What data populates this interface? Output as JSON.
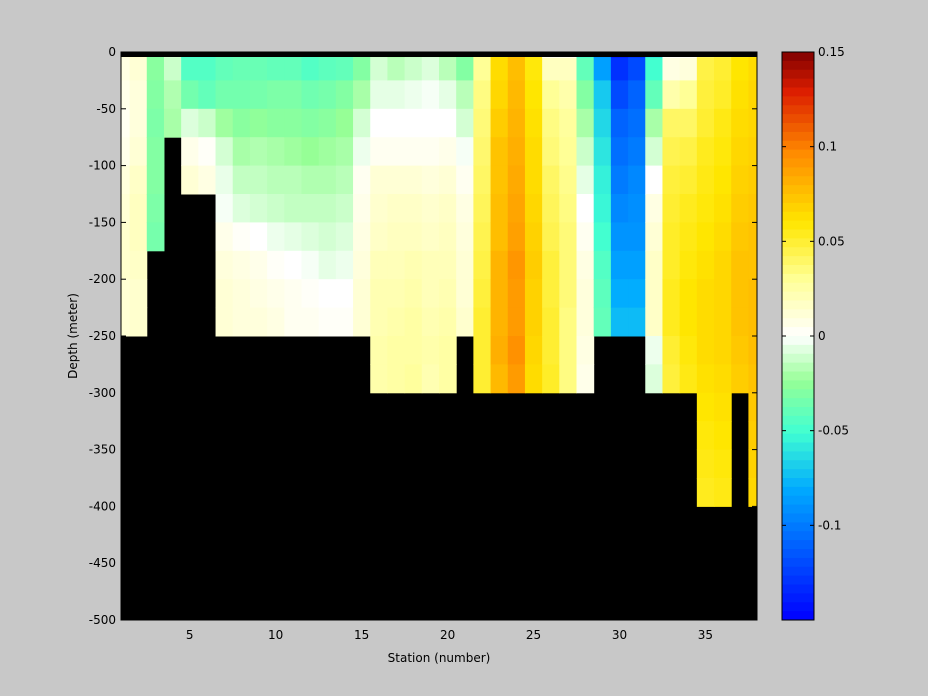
{
  "chart_data": {
    "type": "heatmap",
    "title": "",
    "xlabel": "Station (number)",
    "ylabel": "Depth (meter)",
    "xlim": [
      1,
      38
    ],
    "ylim": [
      -500,
      0
    ],
    "xticks": [
      5,
      10,
      15,
      20,
      25,
      30,
      35
    ],
    "yticks": [
      0,
      -50,
      -100,
      -150,
      -200,
      -250,
      -300,
      -350,
      -400,
      -450,
      -500
    ],
    "colorbar": {
      "range": [
        -0.15,
        0.15
      ],
      "ticks": [
        0.15,
        0.1,
        0.05,
        0,
        -0.05,
        -0.1
      ],
      "tick_labels": [
        "0.15",
        "0.1",
        "0.05",
        "0",
        "-0.05",
        "-0.1"
      ],
      "colormap": "jet-with-white-center"
    },
    "no_data_color": "#000000",
    "station_bottom_depth": [
      250,
      250,
      200,
      75,
      150,
      150,
      250,
      250,
      250,
      250,
      250,
      250,
      250,
      250,
      250,
      300,
      300,
      300,
      300,
      300,
      250,
      300,
      300,
      300,
      300,
      300,
      300,
      300,
      250,
      250,
      250,
      300,
      300,
      300,
      400,
      400,
      300,
      400
    ],
    "depth_bins": [
      0,
      5,
      25,
      50,
      75,
      100,
      125,
      150,
      175,
      200,
      225,
      250,
      275,
      300,
      325,
      350,
      375,
      400
    ],
    "station_profiles": [
      {
        "station": 1,
        "values": [
          0.012,
          0.008,
          0.006,
          0.004,
          0.006,
          0.01,
          0.012,
          0.014,
          0.014,
          0.012,
          0.012
        ]
      },
      {
        "station": 2,
        "values": [
          0.016,
          0.012,
          0.01,
          0.01,
          0.012,
          0.016,
          0.018,
          0.018,
          0.016,
          0.014,
          0.014
        ]
      },
      {
        "station": 3,
        "values": [
          -0.03,
          -0.028,
          -0.03,
          -0.032,
          -0.03,
          -0.03,
          -0.032,
          -0.034
        ]
      },
      {
        "station": 4,
        "values": [
          -0.01,
          -0.012,
          -0.018,
          -0.02
        ]
      },
      {
        "station": 5,
        "values": [
          -0.05,
          -0.045,
          -0.035,
          -0.008,
          0.006,
          0.012
        ]
      },
      {
        "station": 6,
        "values": [
          -0.05,
          -0.045,
          -0.04,
          -0.012,
          0.002,
          0.008
        ]
      },
      {
        "station": 7,
        "values": [
          -0.042,
          -0.04,
          -0.035,
          -0.022,
          -0.01,
          -0.005,
          -0.002,
          0.006,
          0.01,
          0.012,
          0.012
        ]
      },
      {
        "station": 8,
        "values": [
          -0.04,
          -0.038,
          -0.035,
          -0.028,
          -0.02,
          -0.014,
          -0.008,
          0.002,
          0.008,
          0.01,
          0.01
        ]
      },
      {
        "station": 9,
        "values": [
          -0.04,
          -0.038,
          -0.034,
          -0.026,
          -0.018,
          -0.014,
          -0.01,
          0.0,
          0.006,
          0.008,
          0.01
        ]
      },
      {
        "station": 10,
        "values": [
          -0.04,
          -0.04,
          -0.032,
          -0.028,
          -0.02,
          -0.016,
          -0.012,
          -0.004,
          0.002,
          0.006,
          0.008
        ]
      },
      {
        "station": 11,
        "values": [
          -0.042,
          -0.04,
          -0.032,
          -0.028,
          -0.022,
          -0.016,
          -0.014,
          -0.006,
          0.0,
          0.004,
          0.004
        ]
      },
      {
        "station": 12,
        "values": [
          -0.045,
          -0.045,
          -0.036,
          -0.03,
          -0.024,
          -0.018,
          -0.014,
          -0.008,
          -0.002,
          0.002,
          0.004
        ]
      },
      {
        "station": 13,
        "values": [
          -0.04,
          -0.042,
          -0.034,
          -0.028,
          -0.022,
          -0.018,
          -0.014,
          -0.01,
          -0.006,
          0.0,
          0.002
        ]
      },
      {
        "station": 14,
        "values": [
          -0.04,
          -0.04,
          -0.03,
          -0.024,
          -0.02,
          -0.016,
          -0.012,
          -0.008,
          -0.004,
          0.0,
          0.002
        ]
      },
      {
        "station": 15,
        "values": [
          -0.03,
          -0.03,
          -0.02,
          -0.01,
          -0.004,
          0.004,
          0.006,
          0.008,
          0.01,
          0.012,
          0.012
        ]
      },
      {
        "station": 16,
        "values": [
          -0.012,
          -0.01,
          -0.006,
          0.0,
          0.004,
          0.012,
          0.014,
          0.016,
          0.02,
          0.022,
          0.022,
          0.024,
          0.024
        ]
      },
      {
        "station": 17,
        "values": [
          -0.02,
          -0.016,
          -0.006,
          0.0,
          0.004,
          0.012,
          0.016,
          0.018,
          0.02,
          0.022,
          0.024,
          0.026,
          0.026
        ]
      },
      {
        "station": 18,
        "values": [
          -0.014,
          -0.012,
          -0.004,
          0.0,
          0.004,
          0.012,
          0.016,
          0.018,
          0.022,
          0.024,
          0.026,
          0.026,
          0.028
        ]
      },
      {
        "station": 19,
        "values": [
          -0.01,
          -0.008,
          -0.002,
          0.0,
          0.004,
          0.01,
          0.014,
          0.016,
          0.02,
          0.02,
          0.022,
          0.024,
          0.022
        ]
      },
      {
        "station": 20,
        "values": [
          -0.018,
          -0.016,
          -0.006,
          0.0,
          0.006,
          0.012,
          0.016,
          0.018,
          0.02,
          0.022,
          0.024,
          0.026,
          0.026
        ]
      },
      {
        "station": 21,
        "values": [
          -0.03,
          -0.03,
          -0.016,
          -0.01,
          -0.002,
          0.004,
          0.008,
          0.01,
          0.012,
          0.012,
          0.014
        ]
      },
      {
        "station": 22,
        "values": [
          0.03,
          0.03,
          0.034,
          0.036,
          0.038,
          0.04,
          0.042,
          0.044,
          0.046,
          0.048,
          0.05,
          0.05,
          0.05
        ]
      },
      {
        "station": 23,
        "values": [
          0.06,
          0.064,
          0.066,
          0.07,
          0.074,
          0.074,
          0.076,
          0.076,
          0.08,
          0.08,
          0.08,
          0.082,
          0.078
        ]
      },
      {
        "station": 24,
        "values": [
          0.074,
          0.076,
          0.078,
          0.08,
          0.082,
          0.084,
          0.086,
          0.088,
          0.092,
          0.09,
          0.09,
          0.094,
          0.09
        ]
      },
      {
        "station": 25,
        "values": [
          0.056,
          0.058,
          0.06,
          0.062,
          0.064,
          0.064,
          0.066,
          0.068,
          0.07,
          0.068,
          0.068,
          0.066,
          0.064
        ]
      },
      {
        "station": 26,
        "values": [
          0.0,
          0.018,
          0.03,
          0.034,
          0.036,
          0.04,
          0.042,
          0.044,
          0.048,
          0.048,
          0.05,
          0.05,
          0.052
        ]
      },
      {
        "station": 27,
        "values": [
          0.0,
          0.018,
          0.024,
          0.028,
          0.03,
          0.032,
          0.034,
          0.036,
          0.036,
          0.036,
          0.034,
          0.034,
          0.034
        ]
      },
      {
        "station": 28,
        "values": [
          -0.05,
          -0.04,
          -0.03,
          -0.02,
          -0.012,
          -0.006,
          0.0,
          0.004,
          0.008,
          0.01,
          0.01,
          0.008,
          0.006
        ]
      },
      {
        "station": 29,
        "values": [
          -0.09,
          -0.085,
          -0.07,
          -0.065,
          -0.06,
          -0.056,
          -0.054,
          -0.05,
          -0.045,
          -0.042,
          -0.04
        ]
      },
      {
        "station": 30,
        "values": [
          -0.14,
          -0.13,
          -0.12,
          -0.11,
          -0.105,
          -0.1,
          -0.095,
          -0.09,
          -0.085,
          -0.08,
          -0.075
        ]
      },
      {
        "station": 31,
        "values": [
          -0.13,
          -0.12,
          -0.11,
          -0.105,
          -0.1,
          -0.095,
          -0.092,
          -0.09,
          -0.085,
          -0.08,
          -0.075
        ]
      },
      {
        "station": 32,
        "values": [
          -0.06,
          -0.05,
          -0.04,
          -0.02,
          -0.01,
          0.0,
          0.008,
          0.012,
          0.016,
          0.016,
          0.016,
          -0.004,
          -0.008
        ]
      },
      {
        "station": 33,
        "values": [
          0.0,
          0.008,
          0.024,
          0.04,
          0.044,
          0.048,
          0.05,
          0.052,
          0.052,
          0.054,
          0.054,
          0.05,
          0.048
        ]
      },
      {
        "station": 34,
        "values": [
          0.0,
          0.01,
          0.03,
          0.04,
          0.046,
          0.05,
          0.054,
          0.056,
          0.058,
          0.06,
          0.06,
          0.058,
          0.056
        ]
      },
      {
        "station": 35,
        "values": [
          0.04,
          0.046,
          0.048,
          0.05,
          0.054,
          0.056,
          0.058,
          0.06,
          0.062,
          0.064,
          0.064,
          0.064,
          0.062,
          0.06,
          0.058,
          0.056,
          0.054
        ]
      },
      {
        "station": 36,
        "values": [
          0.045,
          0.05,
          0.052,
          0.056,
          0.058,
          0.06,
          0.062,
          0.064,
          0.066,
          0.066,
          0.066,
          0.066,
          0.064,
          0.062,
          0.06,
          0.058,
          0.056
        ]
      },
      {
        "station": 37,
        "values": [
          0.056,
          0.06,
          0.062,
          0.064,
          0.066,
          0.068,
          0.07,
          0.072,
          0.074,
          0.074,
          0.074,
          0.072,
          0.07
        ]
      },
      {
        "station": 38,
        "values": [
          0.06,
          0.064,
          0.066,
          0.066,
          0.068,
          0.07,
          0.072,
          0.074,
          0.074,
          0.076,
          0.076,
          0.076,
          0.074,
          0.072,
          0.07,
          0.068,
          0.066
        ]
      }
    ]
  }
}
